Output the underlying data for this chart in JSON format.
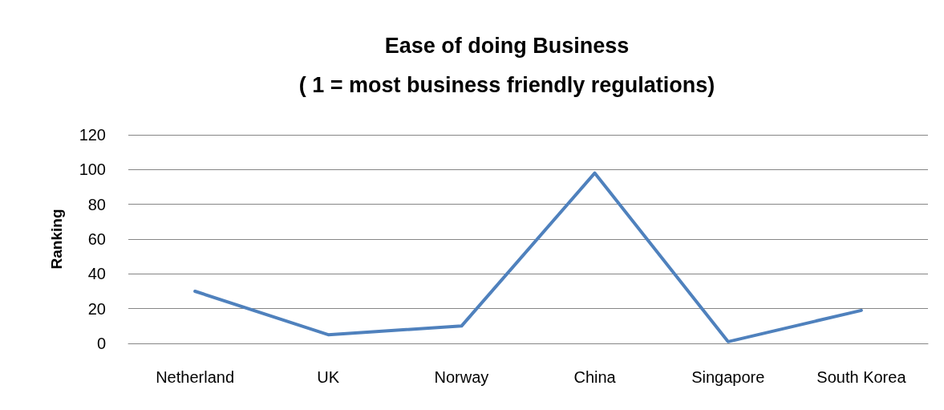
{
  "chart_data": {
    "type": "line",
    "title": "Ease of doing Business",
    "subtitle": "( 1 = most business friendly regulations)",
    "ylabel": "Ranking",
    "categories": [
      "Netherland",
      "UK",
      "Norway",
      "China",
      "Singapore",
      "South Korea"
    ],
    "series": [
      {
        "color": "#4f81bd",
        "values": [
          30,
          5,
          10,
          98,
          1,
          19
        ]
      }
    ],
    "ylim": [
      0,
      120
    ],
    "yticks": [
      0,
      20,
      40,
      60,
      80,
      100,
      120
    ],
    "grid": "y",
    "marker": "none",
    "line_style": "solid"
  }
}
